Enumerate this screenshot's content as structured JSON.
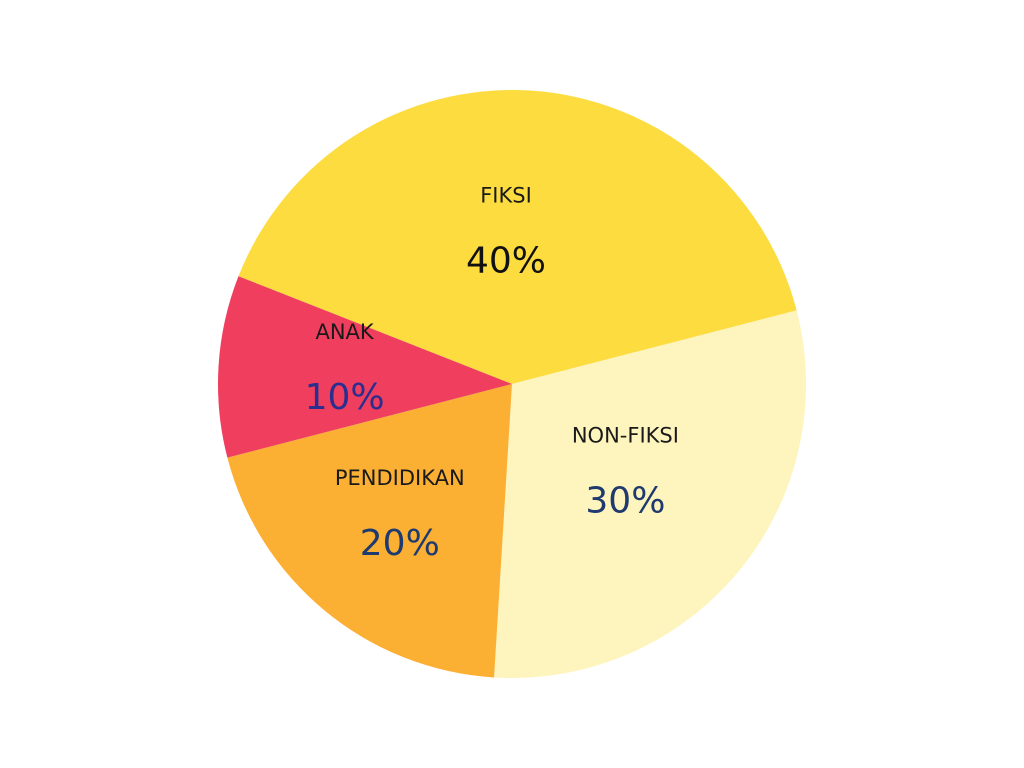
{
  "chart_data": {
    "type": "pie",
    "title": "",
    "slices": [
      {
        "label": "FIKSI",
        "value": 40,
        "value_label": "40%",
        "color": "#FDDC3F",
        "value_color": "#111111"
      },
      {
        "label": "NON-FIKSI",
        "value": 30,
        "value_label": "30%",
        "color": "#FEF4BD",
        "value_color": "#1E3A6E"
      },
      {
        "label": "PENDIDIKAN",
        "value": 20,
        "value_label": "20%",
        "color": "#FBB034",
        "value_color": "#1E3A6E"
      },
      {
        "label": "ANAK",
        "value": 10,
        "value_label": "10%",
        "color": "#F03E5E",
        "value_color": "#2A2F8F"
      }
    ],
    "start": "upper-left, running clockwise",
    "legend": "none",
    "labels": "inside slices"
  }
}
